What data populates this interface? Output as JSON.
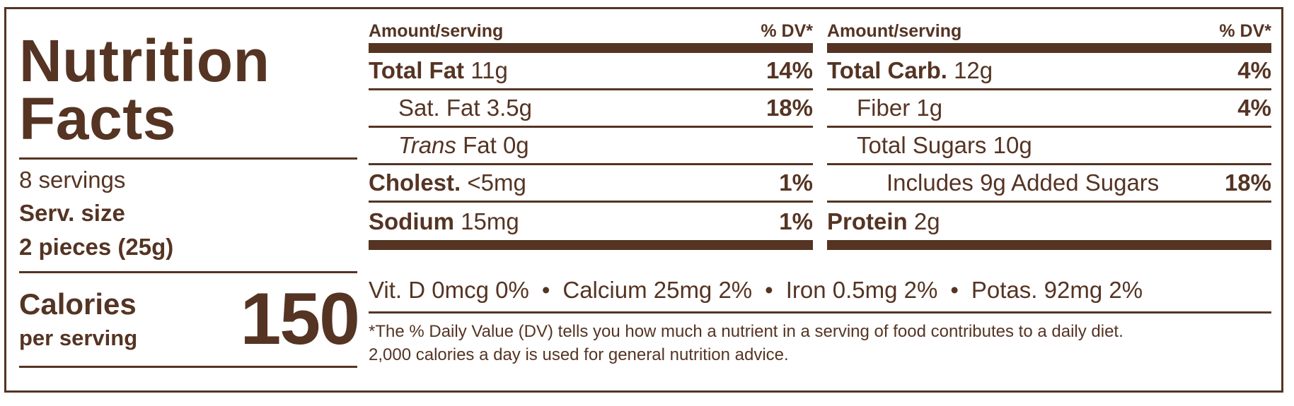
{
  "label": {
    "title_line1": "Nutrition",
    "title_line2": "Facts",
    "servings": "8 servings",
    "serv_size_label": "Serv. size",
    "serv_size_value": "2 pieces (25g)",
    "calories_label": "Calories",
    "calories_sub": "per serving",
    "calories_value": "150"
  },
  "left_column": {
    "header_amount": "Amount/serving",
    "header_dv": "% DV*",
    "rows": [
      {
        "name": "Total Fat",
        "amount": "11g",
        "dv": "14%"
      },
      {
        "name": "Sat. Fat",
        "amount": "3.5g",
        "dv": "18%"
      },
      {
        "name_italic": "Trans",
        "name": "Fat",
        "amount": "0g",
        "dv": ""
      },
      {
        "name": "Cholest.",
        "amount": "<5mg",
        "dv": "1%"
      },
      {
        "name": "Sodium",
        "amount": "15mg",
        "dv": "1%"
      }
    ]
  },
  "right_column": {
    "header_amount": "Amount/serving",
    "header_dv": "% DV*",
    "rows": [
      {
        "name": "Total Carb.",
        "amount": "12g",
        "dv": "4%"
      },
      {
        "name": "Fiber",
        "amount": "1g",
        "dv": "4%"
      },
      {
        "name": "Total Sugars",
        "amount": "10g",
        "dv": ""
      },
      {
        "name": "Includes 9g Added Sugars",
        "amount": "",
        "dv": "18%"
      },
      {
        "name": "Protein",
        "amount": "2g",
        "dv": ""
      }
    ]
  },
  "vitamins": [
    "Vit. D 0mcg 0%",
    "Calcium 25mg 2%",
    "Iron 0.5mg 2%",
    "Potas. 92mg 2%"
  ],
  "separator": "•",
  "footnote_line1": "*The % Daily Value (DV) tells you how much a nutrient in a serving of food contributes to a daily diet.",
  "footnote_line2": "2,000 calories a day is used for general nutrition advice.",
  "colors": {
    "ink": "#553423",
    "background": "#ffffff"
  }
}
